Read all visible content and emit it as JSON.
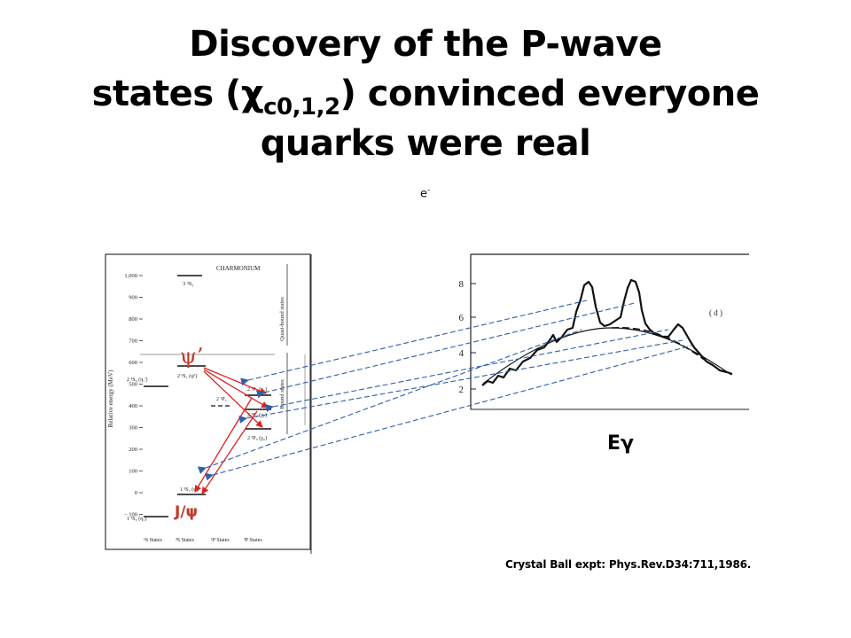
{
  "title": {
    "line1": "Discovery of the P-wave",
    "line2_pre": "states (",
    "line2_chi": "χ",
    "line2_sub": "c0,1,2",
    "line2_post": ") convinced everyone",
    "line3": "quarks were real"
  },
  "stray_label": {
    "base": "e",
    "sup": "-"
  },
  "level_diagram": {
    "header": "CHARMONIUM",
    "y_axis_label": "Relative energy (MeV)",
    "y_ticks": [
      "1,000",
      "900",
      "800",
      "700",
      "600",
      "500",
      "400",
      "300",
      "200",
      "100",
      "0",
      "− 100"
    ],
    "side_labels": [
      "Quasi-bound states",
      "Bound states"
    ],
    "column_labels": [
      "¹S States",
      "³S States",
      "¹P States",
      "³P States"
    ],
    "levels": [
      "3 ³S₁",
      "2 ¹S₀ (η꜀')",
      "2 ³S₁ (ψ')",
      "2 ¹P₁",
      "2 ³P₂ (χ₂)",
      "2 ³P₁ (χ₁)",
      "2 ³P₀ (χ₀)",
      "1 ³S₁ (ψ)",
      "1 ¹S₀ (η꜀)"
    ],
    "psi_prime": "ψ’",
    "jpsi": "J/ψ"
  },
  "spectrum": {
    "y_ticks": [
      "8",
      "6",
      "4",
      "2"
    ],
    "panel_label": "( d )",
    "x_label_base": "E",
    "x_label_sub": "γ"
  },
  "colors": {
    "arrow_red": "#e02020",
    "dash_blue": "#2f5fa8",
    "psi_label": "#c0392b"
  },
  "caption": "Crystal Ball expt: Phys.Rev.D34:711,1986."
}
